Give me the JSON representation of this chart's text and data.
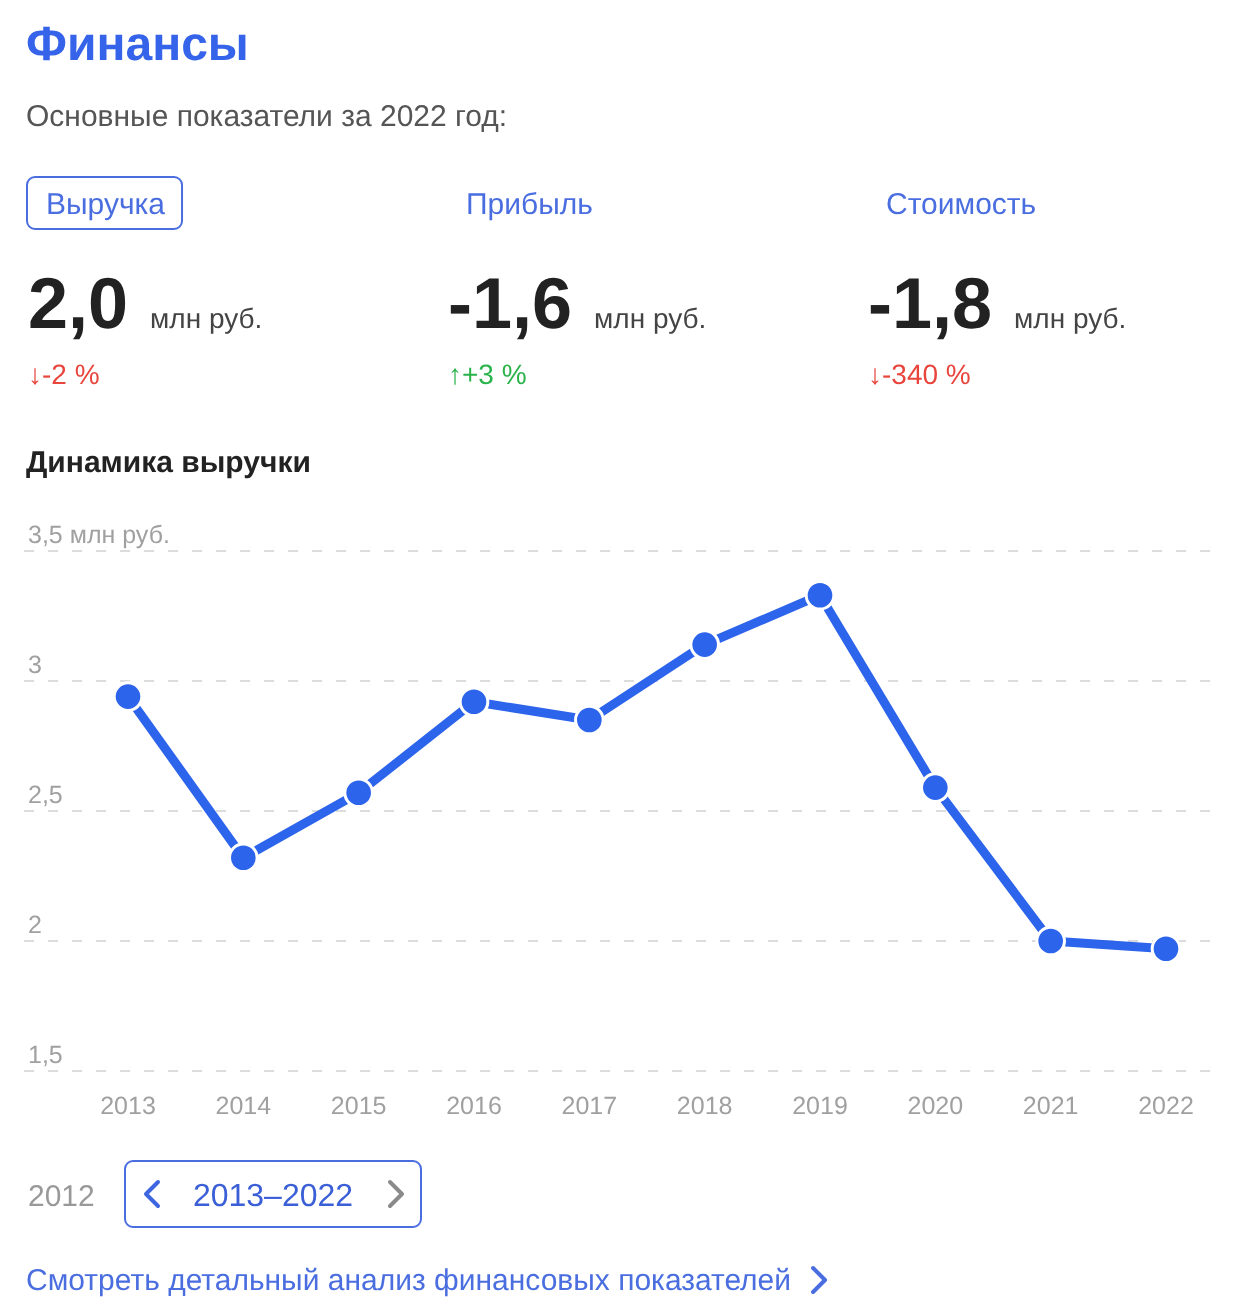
{
  "chart_data": [
    {
      "type": "other",
      "title": "Финансы",
      "subtitle": "Основные показатели за 2022 год:",
      "annotations": [
        "Выручка",
        "2,0",
        "млн руб.",
        "↓-2 %",
        "Прибыль",
        "-1,6",
        "млн руб.",
        "↑+3 %",
        "Стоимость",
        "-1,8",
        "млн руб.",
        "↓-340 %"
      ],
      "colors": [
        "#e8453c",
        "#2bb34b",
        "#e8453c"
      ]
    },
    {
      "type": "line",
      "title": "Динамика выручки",
      "categories": [
        "2013",
        "2014",
        "2015",
        "2016",
        "2017",
        "2018",
        "2019",
        "2020",
        "2021",
        "2022"
      ],
      "series": [
        {
          "color": "#2d64ec",
          "values": [
            2.94,
            2.32,
            2.57,
            2.92,
            2.85,
            3.14,
            3.33,
            2.59,
            2.0,
            1.97
          ]
        }
      ],
      "ylim": [
        1.5,
        3.5
      ],
      "yticks": [
        {
          "value": 1.5,
          "label": "1,5"
        },
        2,
        {
          "value": 2.5,
          "label": "2,5"
        },
        3,
        {
          "value": 3.5,
          "label": "3,5 млн руб."
        }
      ],
      "grid": "y",
      "marker": "circle",
      "annotations": [
        "2012",
        "2013–2022",
        "Смотреть детальный анализ финансовых показателей"
      ]
    }
  ]
}
